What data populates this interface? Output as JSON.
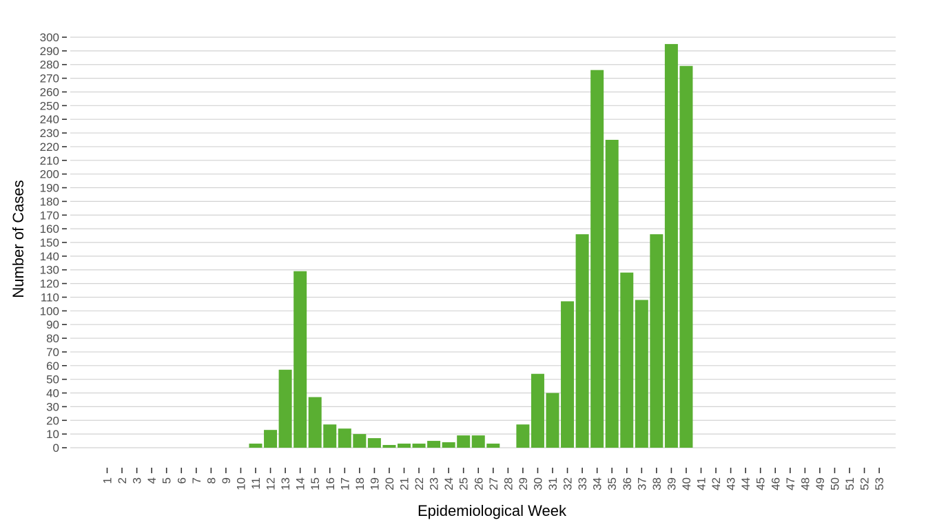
{
  "chart_data": {
    "type": "bar",
    "title": "",
    "xlabel": "Epidemiological Week",
    "ylabel": "Number of Cases",
    "categories": [
      "1",
      "2",
      "3",
      "4",
      "5",
      "6",
      "7",
      "8",
      "9",
      "10",
      "11",
      "12",
      "13",
      "14",
      "15",
      "16",
      "17",
      "18",
      "19",
      "20",
      "21",
      "22",
      "23",
      "24",
      "25",
      "26",
      "27",
      "28",
      "29",
      "30",
      "31",
      "32",
      "33",
      "34",
      "35",
      "36",
      "37",
      "38",
      "39",
      "40",
      "41",
      "42",
      "43",
      "44",
      "45",
      "46",
      "47",
      "48",
      "49",
      "50",
      "51",
      "52",
      "53"
    ],
    "values": [
      0,
      0,
      0,
      0,
      0,
      0,
      0,
      0,
      0,
      0,
      3,
      13,
      57,
      129,
      37,
      17,
      14,
      10,
      7,
      2,
      3,
      3,
      5,
      4,
      9,
      9,
      3,
      0,
      17,
      54,
      40,
      107,
      156,
      276,
      225,
      128,
      108,
      156,
      295,
      279,
      0,
      0,
      0,
      0,
      0,
      0,
      0,
      0,
      0,
      0,
      0,
      0,
      0
    ],
    "ylim": [
      0,
      300
    ],
    "ytick_step": 10,
    "grid": true,
    "bar_color": "#5aaf32"
  }
}
